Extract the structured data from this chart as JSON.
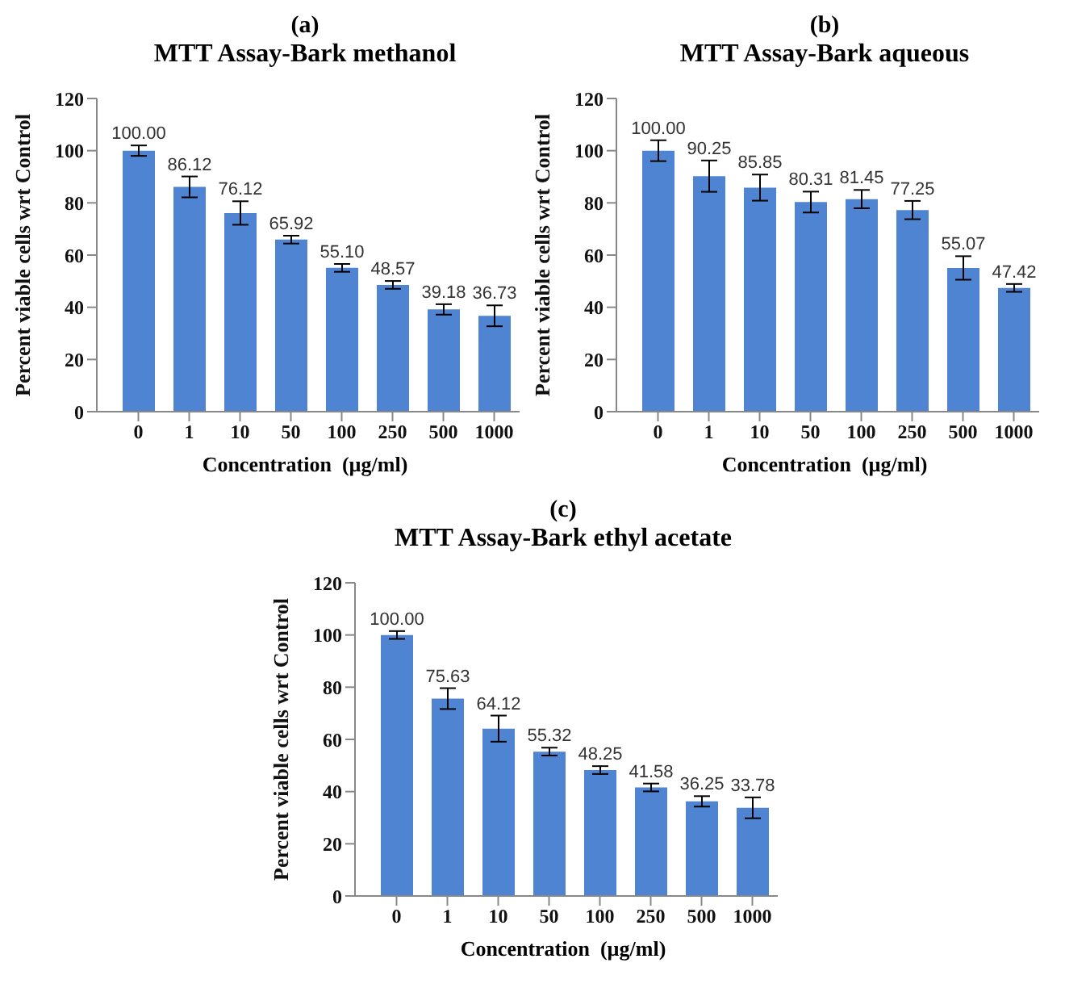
{
  "chart_data": [
    {
      "type": "bar",
      "subtitle": "(a)",
      "title": "MTT Assay-Bark methanol",
      "xlabel": "Concentration  (µg/ml)",
      "ylabel": "Percent viable cells wrt  Control",
      "categories": [
        "0",
        "1",
        "10",
        "50",
        "100",
        "250",
        "500",
        "1000"
      ],
      "values": [
        100.0,
        86.12,
        76.12,
        65.92,
        55.1,
        48.57,
        39.18,
        36.73
      ],
      "value_labels": [
        "100.00",
        "86.12",
        "76.12",
        "65.92",
        "55.10",
        "48.57",
        "39.18",
        "36.73"
      ],
      "errors": [
        2,
        4,
        4.5,
        1.5,
        1.5,
        1.5,
        2,
        4
      ],
      "color": "#4f84d2",
      "ylim": [
        0,
        120
      ],
      "yticks": [
        0,
        20,
        40,
        60,
        80,
        100,
        120
      ]
    },
    {
      "type": "bar",
      "subtitle": "(b)",
      "title": "MTT Assay-Bark aqueous",
      "xlabel": "Concentration  (µg/ml)",
      "ylabel": "Percent viable cells wrt  Control",
      "categories": [
        "0",
        "1",
        "10",
        "50",
        "100",
        "250",
        "500",
        "1000"
      ],
      "values": [
        100.0,
        90.25,
        85.85,
        80.31,
        81.45,
        77.25,
        55.07,
        47.42
      ],
      "value_labels": [
        "100.00",
        "90.25",
        "85.85",
        "80.31",
        "81.45",
        "77.25",
        "55.07",
        "47.42"
      ],
      "errors": [
        4,
        6,
        5,
        4,
        3.5,
        3.5,
        4.5,
        1.5
      ],
      "color": "#4f84d2",
      "ylim": [
        0,
        120
      ],
      "yticks": [
        0,
        20,
        40,
        60,
        80,
        100,
        120
      ]
    },
    {
      "type": "bar",
      "subtitle": "(c)",
      "title": "MTT Assay-Bark ethyl acetate",
      "xlabel": "Concentration  (µg/ml)",
      "ylabel": "Percent viable cells wrt  Control",
      "categories": [
        "0",
        "1",
        "10",
        "50",
        "100",
        "250",
        "500",
        "1000"
      ],
      "values": [
        100.0,
        75.63,
        64.12,
        55.32,
        48.25,
        41.58,
        36.25,
        33.78
      ],
      "value_labels": [
        "100.00",
        "75.63",
        "64.12",
        "55.32",
        "48.25",
        "41.58",
        "36.25",
        "33.78"
      ],
      "errors": [
        1.5,
        4,
        5,
        1.5,
        1.5,
        1.5,
        2,
        4
      ],
      "color": "#4f84d2",
      "ylim": [
        0,
        120
      ],
      "yticks": [
        0,
        20,
        40,
        60,
        80,
        100,
        120
      ]
    }
  ]
}
